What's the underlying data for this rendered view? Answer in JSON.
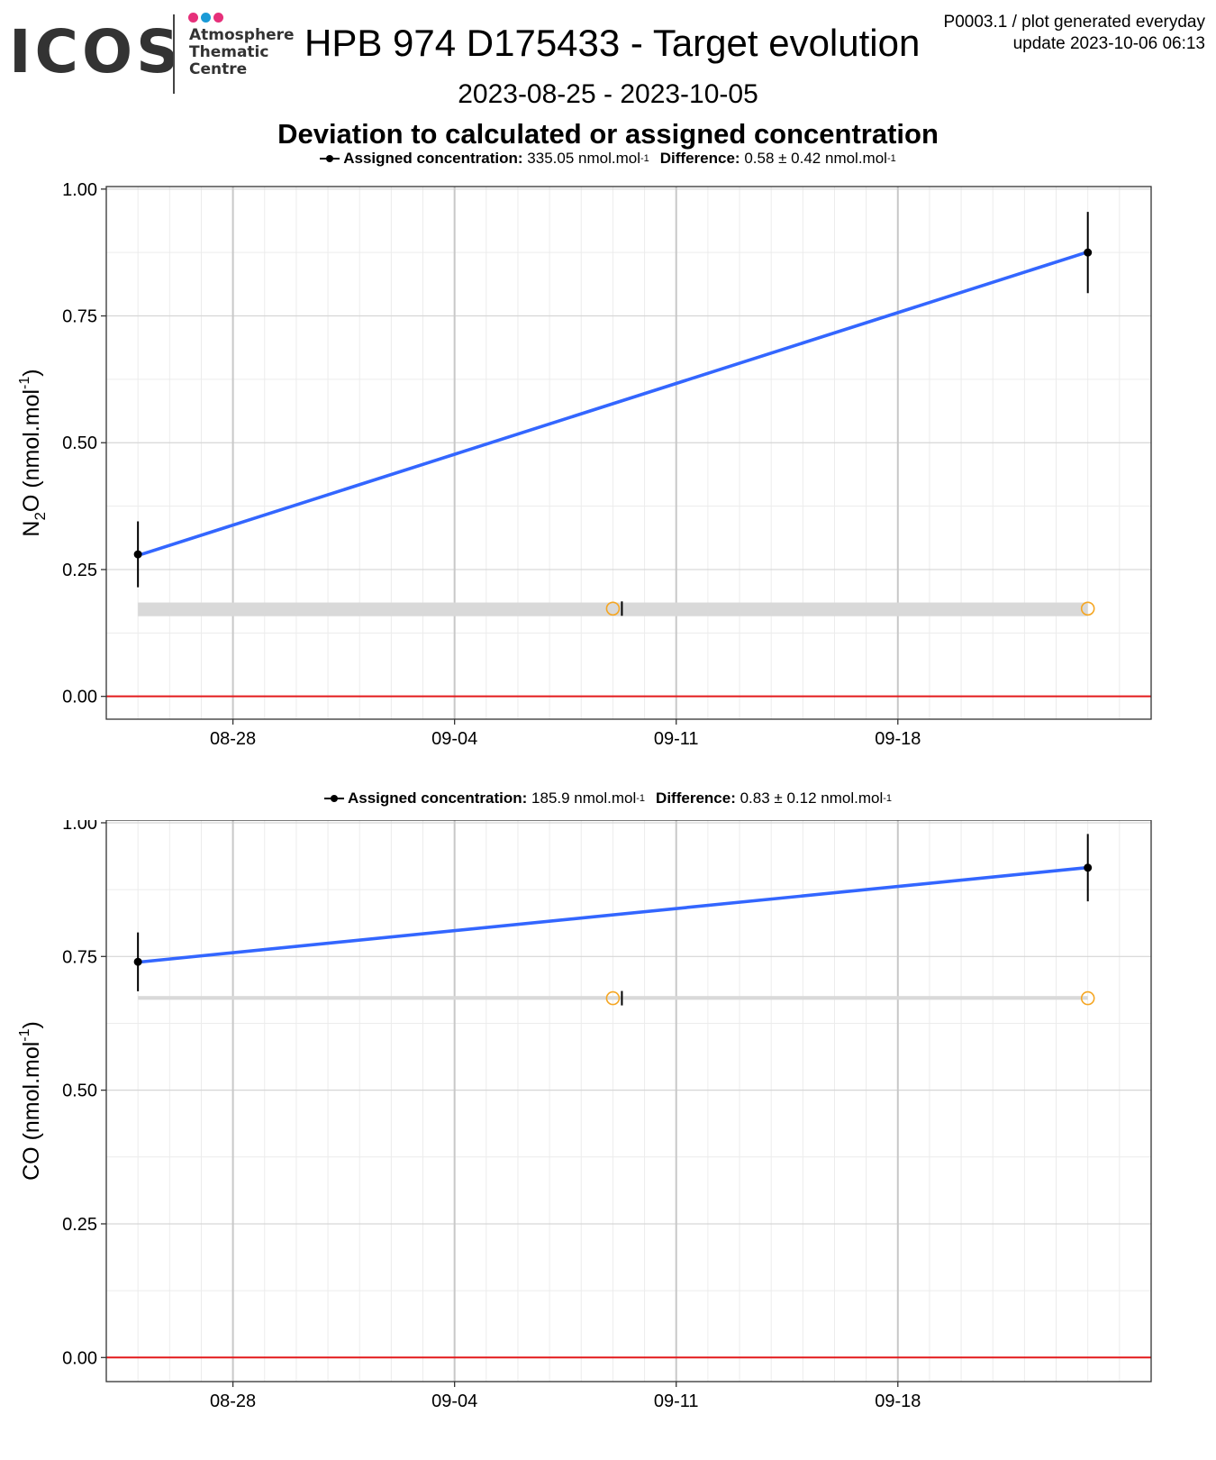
{
  "header": {
    "logo_text": "ICOS",
    "logo_subtitle": [
      "Atmosphere",
      "Thematic",
      "Centre"
    ],
    "logo_dot_colors": [
      "#e6307a",
      "#1a9ad6",
      "#e6307a"
    ],
    "title": "HPB 974 D175433 - Target evolution",
    "product_line": "P0003.1 / plot generated everyday",
    "update_line": "update  2023-10-06 06:13",
    "date_range": "2023-08-25 - 2023-10-05",
    "subtitle": "Deviation to calculated or assigned concentration"
  },
  "colors": {
    "trend_line": "#3366ff",
    "zero_line": "#e31a1c",
    "open_markers": "#f5a623",
    "band": "#d9d9d9",
    "points": "#000000"
  },
  "chart_data": [
    {
      "type": "line",
      "species": "N2O",
      "ylabel": "N2O (nmol.mol-1)",
      "ylabel_main": "N",
      "ylabel_sub": "2",
      "ylabel_rest": "O (nmol.mol",
      "ylabel_sup": "-1",
      "ylabel_end": ")",
      "legend": {
        "assigned_label": "Assigned concentration:",
        "assigned_value": "335.05 nmol.mol",
        "assigned_sup": "-1",
        "difference_label": "Difference:",
        "difference_value": "0.58 ± 0.42 nmol.mol",
        "difference_sup": "-1"
      },
      "x_range": [
        "2023-08-24",
        "2023-09-26"
      ],
      "x_ticks": [
        "2023-08-28",
        "2023-09-04",
        "2023-09-11",
        "2023-09-18"
      ],
      "x_tick_labels": [
        "08-28",
        "09-04",
        "09-11",
        "09-18"
      ],
      "ylim": [
        -0.045,
        1.005
      ],
      "y_ticks": [
        0.0,
        0.25,
        0.5,
        0.75,
        1.0
      ],
      "y_tick_labels": [
        "0.00",
        "0.25",
        "0.50",
        "0.75",
        "1.00"
      ],
      "grid": true,
      "points": [
        {
          "x": "2023-08-25",
          "y": 0.28,
          "err": 0.065
        },
        {
          "x": "2023-09-24",
          "y": 0.875,
          "err": 0.08
        }
      ],
      "trend": [
        {
          "x": "2023-08-25",
          "y": 0.28
        },
        {
          "x": "2023-09-24",
          "y": 0.875
        }
      ],
      "band": {
        "x": [
          "2023-08-25",
          "2023-09-24"
        ],
        "y": [
          0.158,
          0.185
        ]
      },
      "open_points": [
        {
          "x": "2023-09-09",
          "y": 0.173
        },
        {
          "x": "2023-09-24",
          "y": 0.173
        }
      ],
      "tick_mark": {
        "x": "2023-09-09",
        "y": 0.173
      }
    },
    {
      "type": "line",
      "species": "CO",
      "ylabel": "CO (nmol.mol-1)",
      "ylabel_main": "CO (nmol.mol",
      "ylabel_sub": "",
      "ylabel_rest": "",
      "ylabel_sup": "-1",
      "ylabel_end": ")",
      "legend": {
        "assigned_label": "Assigned concentration:",
        "assigned_value": "185.9 nmol.mol",
        "assigned_sup": "-1",
        "difference_label": "Difference:",
        "difference_value": "0.83 ± 0.12 nmol.mol",
        "difference_sup": "-1"
      },
      "x_range": [
        "2023-08-24",
        "2023-09-26"
      ],
      "x_ticks": [
        "2023-08-28",
        "2023-09-04",
        "2023-09-11",
        "2023-09-18"
      ],
      "x_tick_labels": [
        "08-28",
        "09-04",
        "09-11",
        "09-18"
      ],
      "ylim": [
        -0.045,
        1.005
      ],
      "y_ticks": [
        0.0,
        0.25,
        0.5,
        0.75,
        1.0
      ],
      "y_tick_labels": [
        "0.00",
        "0.25",
        "0.50",
        "0.75",
        "1.00"
      ],
      "grid": true,
      "points": [
        {
          "x": "2023-08-25",
          "y": 0.74,
          "err": 0.055
        },
        {
          "x": "2023-09-24",
          "y": 0.916,
          "err": 0.063
        }
      ],
      "trend": [
        {
          "x": "2023-08-25",
          "y": 0.74
        },
        {
          "x": "2023-09-24",
          "y": 0.916
        }
      ],
      "band": {
        "x": [
          "2023-08-25",
          "2023-09-24"
        ],
        "y": [
          0.669,
          0.676
        ]
      },
      "open_points": [
        {
          "x": "2023-09-09",
          "y": 0.672
        },
        {
          "x": "2023-09-24",
          "y": 0.672
        }
      ],
      "tick_mark": {
        "x": "2023-09-09",
        "y": 0.672
      }
    }
  ]
}
